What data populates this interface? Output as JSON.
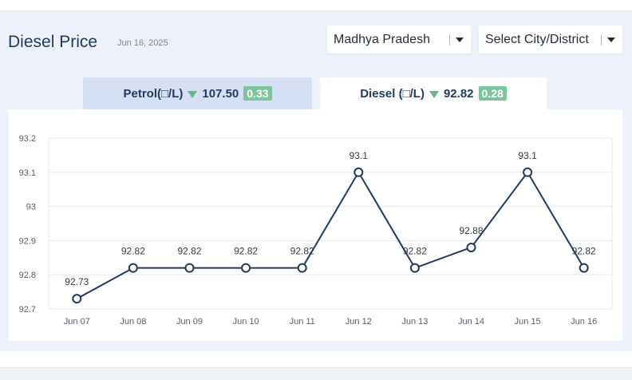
{
  "header": {
    "title": "Diesel Price",
    "date": "Jun 16, 2025"
  },
  "selectors": {
    "state": "Madhya Pradesh",
    "city": "Select City/District"
  },
  "tabs": {
    "petrol": {
      "label": "Petrol(□/L)",
      "price": "107.50",
      "change": "0.33"
    },
    "diesel": {
      "label": "Diesel (□/L)",
      "price": "92.82",
      "change": "0.28"
    }
  },
  "colors": {
    "line": "#1f3a5f",
    "down_arrow": "#6db38a",
    "badge": "#7cc49b"
  },
  "chart_data": {
    "type": "line",
    "categories": [
      "Jun 07",
      "Jun 08",
      "Jun 09",
      "Jun 10",
      "Jun 11",
      "Jun 12",
      "Jun 13",
      "Jun 14",
      "Jun 15",
      "Jun 16"
    ],
    "values": [
      92.73,
      92.82,
      92.82,
      92.82,
      92.82,
      93.1,
      92.82,
      92.88,
      93.1,
      92.82
    ],
    "data_labels": [
      "92.73",
      "92.82",
      "92.82",
      "92.82",
      "92.82",
      "93.1",
      "92.82",
      "92.88",
      "93.1",
      "92.82"
    ],
    "yticks": [
      "92.7",
      "92.8",
      "92.9",
      "93",
      "93.1",
      "93.2"
    ],
    "ylim": [
      92.7,
      93.2
    ],
    "grid": true,
    "legend": "none"
  }
}
